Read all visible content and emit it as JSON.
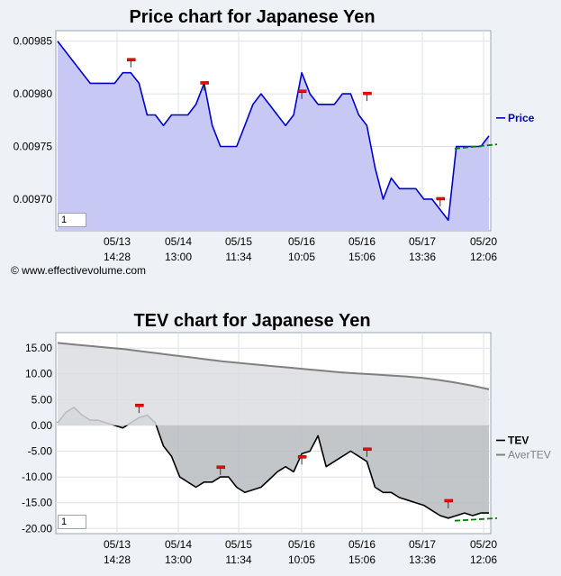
{
  "copyright": "© www.effectivevolume.com",
  "chart_data": [
    {
      "type": "line",
      "title": "Price chart for Japanese Yen",
      "zoom_value": "1",
      "x_ticks": [
        {
          "date": "05/13",
          "time": "14:28"
        },
        {
          "date": "05/14",
          "time": "13:00"
        },
        {
          "date": "05/15",
          "time": "11:34"
        },
        {
          "date": "05/16",
          "time": "10:05"
        },
        {
          "date": "05/16",
          "time": "15:06"
        },
        {
          "date": "05/17",
          "time": "13:36"
        },
        {
          "date": "05/20",
          "time": "12:06"
        }
      ],
      "ylim": [
        0.00967,
        0.00986
      ],
      "y_ticks": [
        "0.00970",
        "0.00975",
        "0.00980",
        "0.00985"
      ],
      "series": [
        {
          "name": "Price",
          "color": "#0000cc",
          "values": [
            0.00985,
            0.00984,
            0.00983,
            0.00982,
            0.00981,
            0.00981,
            0.00981,
            0.00981,
            0.00982,
            0.00982,
            0.00981,
            0.00978,
            0.00978,
            0.00977,
            0.00978,
            0.00978,
            0.00978,
            0.00979,
            0.00981,
            0.00977,
            0.00975,
            0.00975,
            0.00975,
            0.00977,
            0.00979,
            0.0098,
            0.00979,
            0.00978,
            0.00977,
            0.00978,
            0.00982,
            0.0098,
            0.00979,
            0.00979,
            0.00979,
            0.0098,
            0.0098,
            0.00978,
            0.00977,
            0.00973,
            0.0097,
            0.00972,
            0.00971,
            0.00971,
            0.00971,
            0.0097,
            0.0097,
            0.00969,
            0.00968,
            0.00975,
            0.00975,
            0.00975,
            0.00975,
            0.00976
          ]
        }
      ],
      "trend": {
        "color": "#008000",
        "from": 0.009748,
        "to": 0.009752
      },
      "markers": [
        {
          "index": 9,
          "value": 0.009832
        },
        {
          "index": 18,
          "value": 0.00981
        },
        {
          "index": 30,
          "value": 0.009802
        },
        {
          "index": 38,
          "value": 0.0098
        },
        {
          "index": 47,
          "value": 0.0097
        }
      ],
      "legend": {
        "placement": "right"
      }
    },
    {
      "type": "line",
      "title": "TEV chart for Japanese Yen",
      "zoom_value": "1",
      "x_ticks": [
        {
          "date": "05/13",
          "time": "14:28"
        },
        {
          "date": "05/14",
          "time": "13:00"
        },
        {
          "date": "05/15",
          "time": "11:34"
        },
        {
          "date": "05/16",
          "time": "10:05"
        },
        {
          "date": "05/16",
          "time": "15:06"
        },
        {
          "date": "05/17",
          "time": "13:36"
        },
        {
          "date": "05/20",
          "time": "12:06"
        }
      ],
      "ylim": [
        -21,
        18
      ],
      "y_ticks": [
        "15.00",
        "10.00",
        "5.00",
        "0.00",
        "-5.00",
        "-10.00",
        "-15.00",
        "-20.00"
      ],
      "series": [
        {
          "name": "TEV",
          "color": "#000000",
          "values": [
            0.5,
            2.5,
            3.5,
            2,
            1,
            1,
            0.5,
            0,
            -0.5,
            0.5,
            1.5,
            2,
            0.5,
            -4,
            -6,
            -10,
            -11,
            -12,
            -11,
            -11,
            -10,
            -10,
            -12,
            -13,
            -12.5,
            -12,
            -10.5,
            -9,
            -8,
            -9,
            -5.5,
            -5,
            -2,
            -8,
            -7,
            -6,
            -5,
            -6,
            -7,
            -12,
            -13,
            -13,
            -14,
            -14.5,
            -15,
            -15.5,
            -16.5,
            -17.5,
            -18,
            -17.5,
            -17,
            -17.5,
            -17,
            -17
          ]
        },
        {
          "name": "AverTEV",
          "color": "#808080",
          "values": [
            16,
            15.7,
            15.4,
            15.1,
            14.8,
            14.4,
            14.0,
            13.6,
            13.2,
            12.8,
            12.4,
            12.1,
            11.8,
            11.5,
            11.2,
            10.9,
            10.6,
            10.3,
            10.1,
            9.9,
            9.7,
            9.5,
            9.2,
            8.8,
            8.3,
            7.7,
            7.0
          ]
        }
      ],
      "trend": {
        "color": "#008000",
        "from": -18.5,
        "to": -18.0
      },
      "markers": [
        {
          "index": 10,
          "value": 3.8
        },
        {
          "index": 20,
          "value": -8.2
        },
        {
          "index": 30,
          "value": -6.2
        },
        {
          "index": 38,
          "value": -4.7
        },
        {
          "index": 48,
          "value": -14.7
        }
      ],
      "legend": {
        "placement": "right"
      }
    }
  ]
}
